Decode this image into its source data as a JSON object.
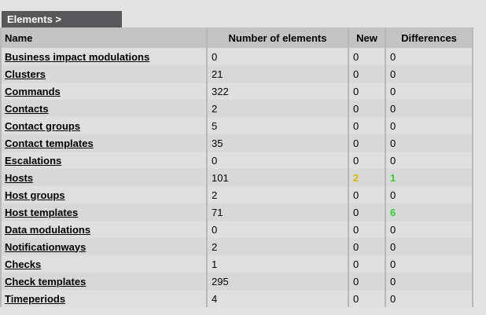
{
  "breadcrumb": {
    "label": "Elements >"
  },
  "table": {
    "columns": [
      {
        "key": "name",
        "label": "Name"
      },
      {
        "key": "count",
        "label": "Number of elements"
      },
      {
        "key": "new",
        "label": "New"
      },
      {
        "key": "diff",
        "label": "Differences"
      }
    ],
    "rows": [
      {
        "name": "Business impact modulations",
        "count": "0",
        "new": "0",
        "diff": "0"
      },
      {
        "name": "Clusters",
        "count": "21",
        "new": "0",
        "diff": "0"
      },
      {
        "name": "Commands",
        "count": "322",
        "new": "0",
        "diff": "0"
      },
      {
        "name": "Contacts",
        "count": "2",
        "new": "0",
        "diff": "0"
      },
      {
        "name": "Contact groups",
        "count": "5",
        "new": "0",
        "diff": "0"
      },
      {
        "name": "Contact templates",
        "count": "35",
        "new": "0",
        "diff": "0"
      },
      {
        "name": "Escalations",
        "count": "0",
        "new": "0",
        "diff": "0"
      },
      {
        "name": "Hosts",
        "count": "101",
        "new": "2",
        "diff": "1",
        "new_highlight": true,
        "diff_highlight": true
      },
      {
        "name": "Host groups",
        "count": "2",
        "new": "0",
        "diff": "0"
      },
      {
        "name": "Host templates",
        "count": "71",
        "new": "0",
        "diff": "6",
        "diff_highlight": true
      },
      {
        "name": "Data modulations",
        "count": "0",
        "new": "0",
        "diff": "0"
      },
      {
        "name": "Notificationways",
        "count": "2",
        "new": "0",
        "diff": "0"
      },
      {
        "name": "Checks",
        "count": "1",
        "new": "0",
        "diff": "0"
      },
      {
        "name": "Check templates",
        "count": "295",
        "new": "0",
        "diff": "0"
      },
      {
        "name": "Timeperiods",
        "count": "4",
        "new": "0",
        "diff": "0"
      }
    ]
  },
  "colors": {
    "page_bg": "#e3e3e3",
    "tab_bg": "#58585a",
    "header_bg": "#c3c3c3",
    "row_light": "#dfdfdf",
    "row_dark": "#d8d8d8",
    "cell_gap": "#b8b8b8",
    "highlight_bg": "#000000",
    "new_highlight_text": "#e0b800",
    "diff_highlight_text": "#2fce2f"
  }
}
